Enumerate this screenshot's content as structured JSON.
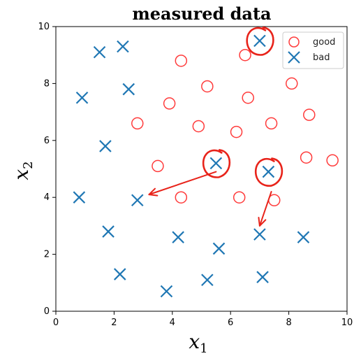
{
  "chart_data": {
    "type": "scatter",
    "title": "measured data",
    "xlabel": "x",
    "xlabel_sub": "1",
    "ylabel": "x",
    "ylabel_sub": "2",
    "xlim": [
      0,
      10
    ],
    "ylim": [
      0,
      10
    ],
    "xticks": [
      "0",
      "2",
      "4",
      "6",
      "8",
      "10"
    ],
    "yticks": [
      "0",
      "2",
      "4",
      "6",
      "8",
      "10"
    ],
    "grid": false,
    "legend_position": "top-right",
    "series": [
      {
        "name": "good",
        "marker": "circle",
        "color": "#ff3b3b",
        "points": [
          [
            4.3,
            8.8
          ],
          [
            6.5,
            9.0
          ],
          [
            5.2,
            7.9
          ],
          [
            3.9,
            7.3
          ],
          [
            6.6,
            7.5
          ],
          [
            8.1,
            8.0
          ],
          [
            2.8,
            6.6
          ],
          [
            4.9,
            6.5
          ],
          [
            6.2,
            6.3
          ],
          [
            7.4,
            6.6
          ],
          [
            8.7,
            6.9
          ],
          [
            3.5,
            5.1
          ],
          [
            8.6,
            5.4
          ],
          [
            9.5,
            5.3
          ],
          [
            4.3,
            4.0
          ],
          [
            6.3,
            4.0
          ],
          [
            7.5,
            3.9
          ]
        ]
      },
      {
        "name": "bad",
        "marker": "x",
        "color": "#1f77b4",
        "points": [
          [
            1.5,
            9.1
          ],
          [
            2.3,
            9.3
          ],
          [
            7.0,
            9.5
          ],
          [
            0.9,
            7.5
          ],
          [
            2.5,
            7.8
          ],
          [
            1.7,
            5.8
          ],
          [
            5.5,
            5.2
          ],
          [
            7.3,
            4.9
          ],
          [
            0.8,
            4.0
          ],
          [
            2.8,
            3.9
          ],
          [
            1.8,
            2.8
          ],
          [
            4.2,
            2.6
          ],
          [
            5.6,
            2.2
          ],
          [
            7.0,
            2.7
          ],
          [
            8.5,
            2.6
          ],
          [
            2.2,
            1.3
          ],
          [
            3.8,
            0.7
          ],
          [
            5.2,
            1.1
          ],
          [
            7.1,
            1.2
          ]
        ]
      }
    ],
    "annotations": [
      {
        "type": "circle-highlight",
        "color": "#e8231a",
        "points": [
          [
            7.0,
            9.5
          ],
          [
            5.5,
            5.2
          ],
          [
            7.3,
            4.9
          ]
        ]
      },
      {
        "type": "arrow",
        "color": "#e8231a",
        "from": [
          5.5,
          4.9
        ],
        "to": [
          3.2,
          4.1
        ]
      },
      {
        "type": "arrow",
        "color": "#e8231a",
        "from": [
          7.4,
          4.2
        ],
        "to": [
          7.0,
          3.0
        ]
      }
    ]
  }
}
